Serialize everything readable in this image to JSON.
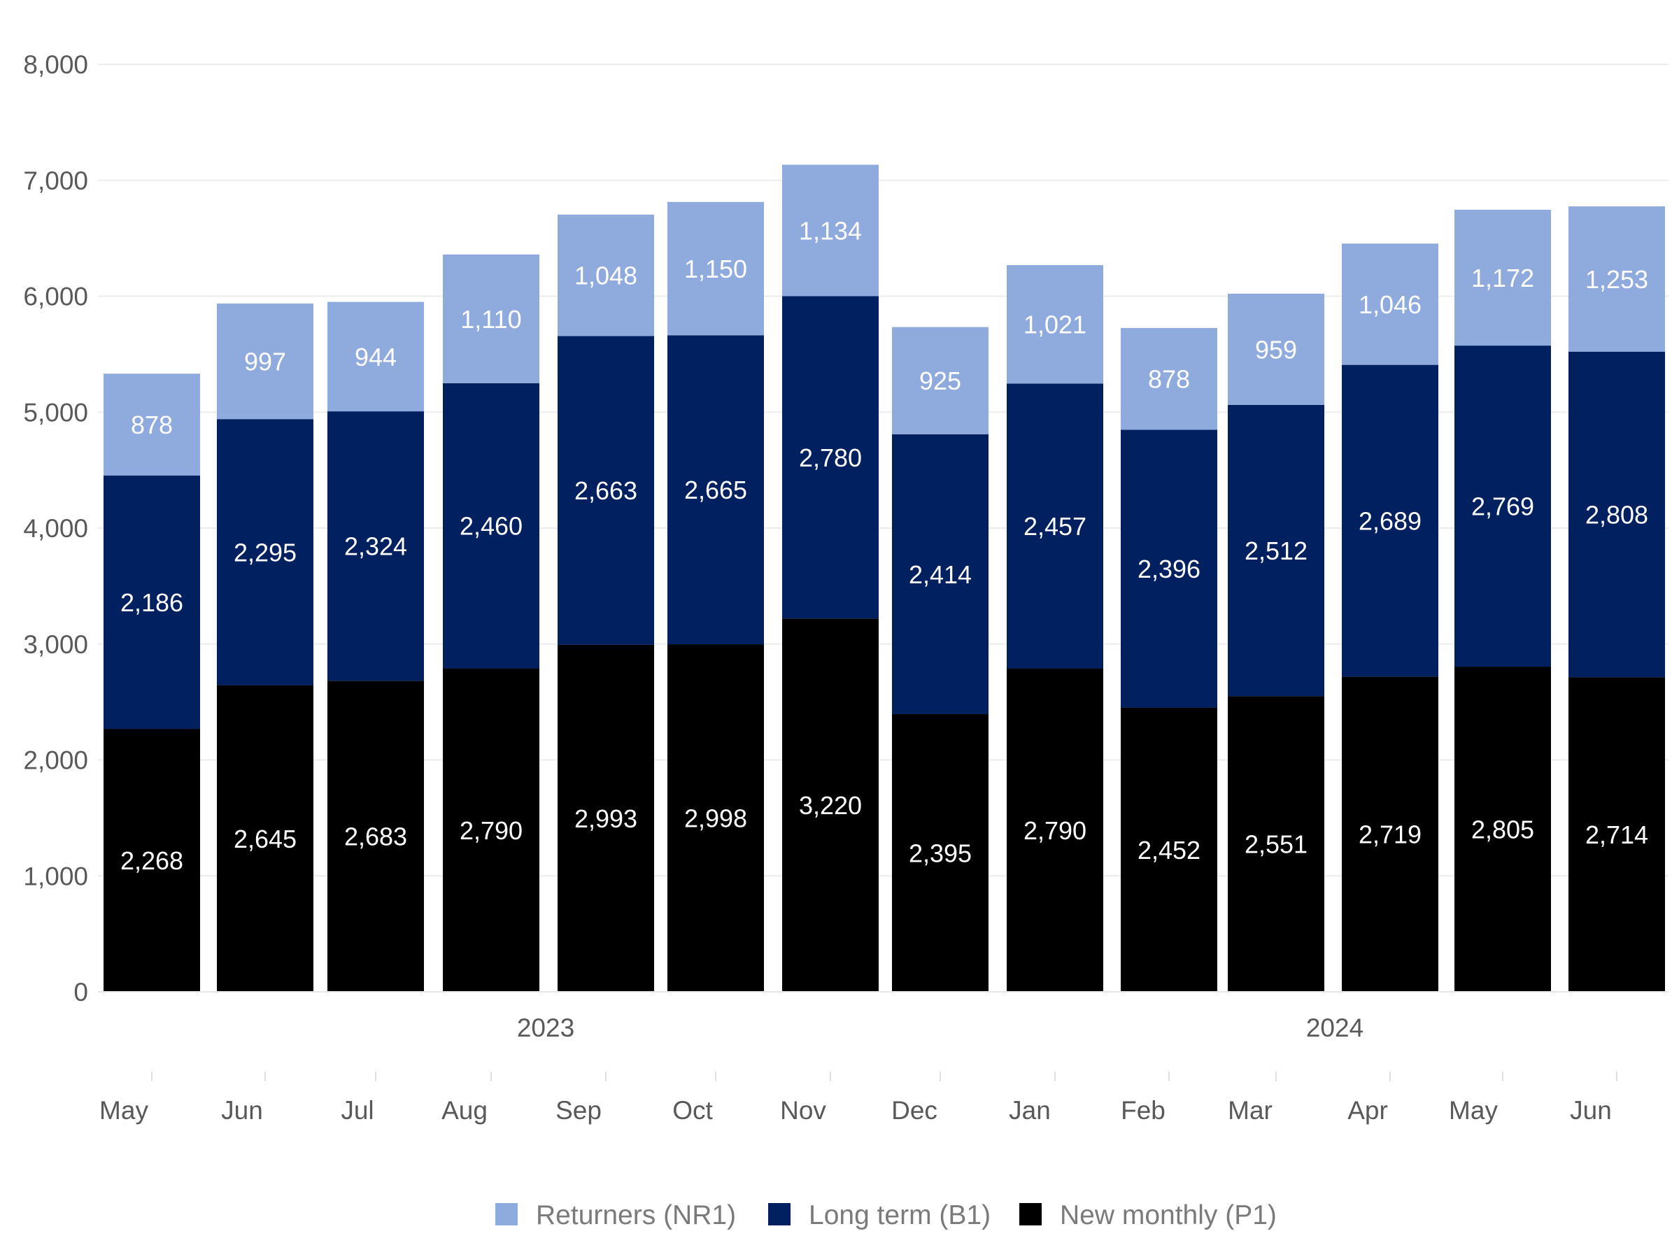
{
  "chart_data": {
    "type": "bar",
    "stacked": true,
    "title": "",
    "xlabel": "",
    "ylabel": "",
    "ylim": [
      0,
      8000
    ],
    "yticks": [
      0,
      1000,
      2000,
      3000,
      4000,
      5000,
      6000,
      7000,
      8000
    ],
    "ytick_labels": [
      "0",
      "1,000",
      "2,000",
      "3,000",
      "4,000",
      "5,000",
      "6,000",
      "7,000",
      "8,000"
    ],
    "categories": [
      "May",
      "Jun",
      "Jul",
      "Aug",
      "Sep",
      "Oct",
      "Nov",
      "Dec",
      "Jan",
      "Feb",
      "Mar",
      "Apr",
      "May",
      "Jun"
    ],
    "year_labels": [
      "2023",
      "2024"
    ],
    "grid": "horizontal",
    "legend_position": "bottom",
    "series": [
      {
        "name": "New monthly (P1)",
        "color": "#000000",
        "values": [
          2268,
          2645,
          2683,
          2790,
          2993,
          2998,
          3220,
          2395,
          2790,
          2452,
          2551,
          2719,
          2805,
          2714
        ],
        "labels": [
          "2,268",
          "2,645",
          "2,683",
          "2,790",
          "2,993",
          "2,998",
          "3,220",
          "2,395",
          "2,790",
          "2,452",
          "2,551",
          "2,719",
          "2,805",
          "2,714"
        ]
      },
      {
        "name": "Long term (B1)",
        "color": "#002060",
        "values": [
          2186,
          2295,
          2324,
          2460,
          2663,
          2665,
          2780,
          2414,
          2457,
          2396,
          2512,
          2689,
          2769,
          2808
        ],
        "labels": [
          "2,186",
          "2,295",
          "2,324",
          "2,460",
          "2,663",
          "2,665",
          "2,780",
          "2,414",
          "2,457",
          "2,396",
          "2,512",
          "2,689",
          "2,769",
          "2,808"
        ]
      },
      {
        "name": "Returners (NR1)",
        "color": "#8FAADC",
        "values": [
          878,
          997,
          944,
          1110,
          1048,
          1150,
          1134,
          925,
          1021,
          878,
          959,
          1046,
          1172,
          1253
        ],
        "labels": [
          "878",
          "997",
          "944",
          "1,110",
          "1,048",
          "1,150",
          "1,134",
          "925",
          "1,021",
          "878",
          "959",
          "1,046",
          "1,172",
          "1,253"
        ]
      }
    ],
    "legend_order": [
      "Returners (NR1)",
      "Long term (B1)",
      "New monthly (P1)"
    ]
  }
}
